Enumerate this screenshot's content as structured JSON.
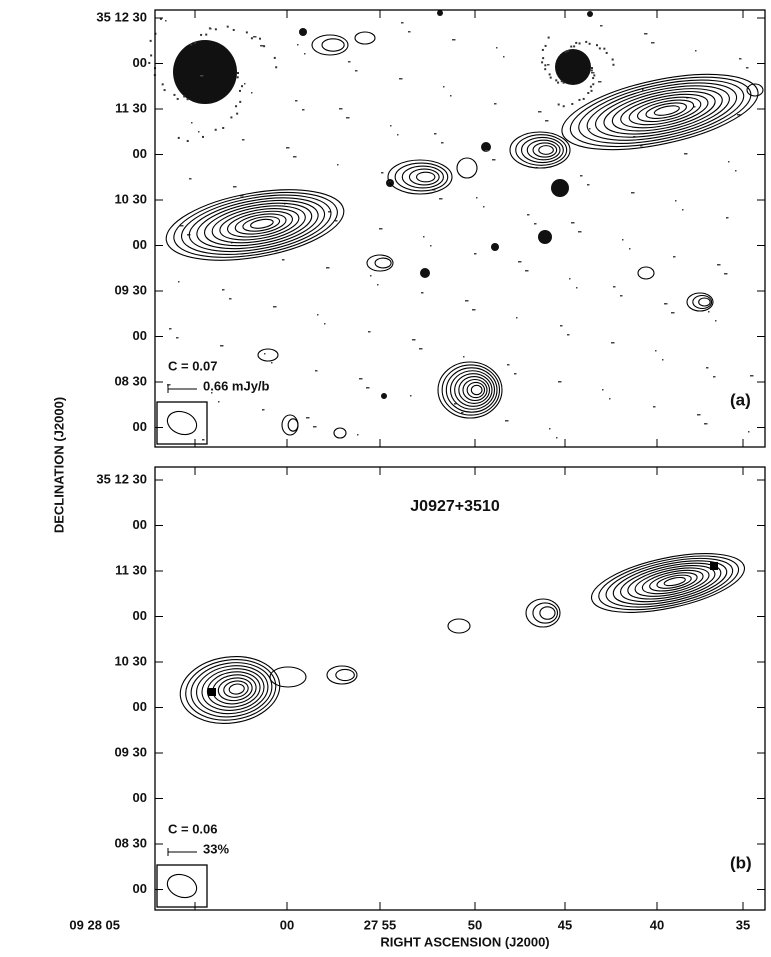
{
  "figure": {
    "y_axis_label": "DECLINATION (J2000)",
    "x_axis_label": "RIGHT ASCENSION (J2000)",
    "x_tick_labels": [
      "09 28 05",
      "00",
      "27 55",
      "50",
      "45",
      "40",
      "35"
    ],
    "panels": [
      {
        "y_tick_labels": [
          "35 12 30",
          "00",
          "11 30",
          "00",
          "10 30",
          "00",
          "09 30",
          "00",
          "08 30",
          "00"
        ],
        "contour_level": "C = 0.07",
        "scale_label": "0.66 mJy/b",
        "panel_label": "(a)"
      },
      {
        "title": "J0927+3510",
        "y_tick_labels": [
          "35 12 30",
          "00",
          "11 30",
          "00",
          "10 30",
          "00",
          "09 30",
          "00",
          "08 30",
          "00"
        ],
        "contour_level": "C = 0.06",
        "scale_label": "33%",
        "panel_label": "(b)"
      }
    ]
  }
}
